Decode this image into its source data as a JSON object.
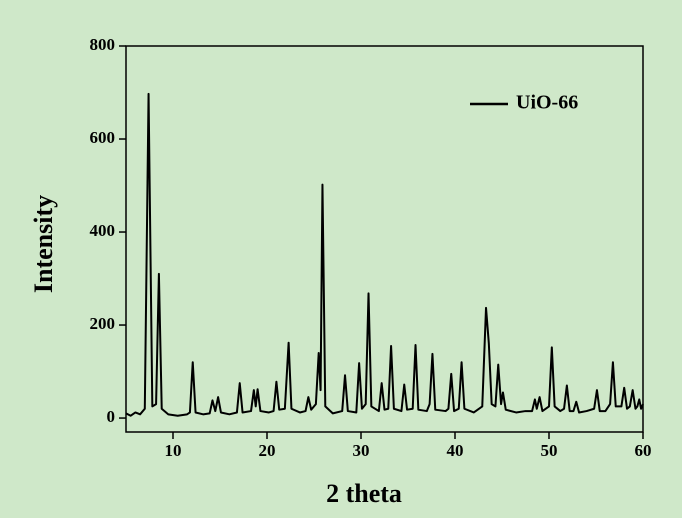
{
  "chart_data": {
    "type": "line",
    "x_label": "2 theta",
    "y_label": "Intensity",
    "xlim": [
      5,
      60
    ],
    "xticks": [
      10,
      20,
      30,
      40,
      50,
      60
    ],
    "ylim": [
      -30,
      800
    ],
    "yticks": [
      0,
      200,
      400,
      600,
      800
    ],
    "legend": "top-right",
    "x": [
      5,
      5.5,
      6,
      6.5,
      7.0,
      7.4,
      7.8,
      8.2,
      8.5,
      8.8,
      9.5,
      10.5,
      11.5,
      11.8,
      12.1,
      12.4,
      13.2,
      13.9,
      14.2,
      14.5,
      14.8,
      15.1,
      16.0,
      16.8,
      17.1,
      17.4,
      18.3,
      18.6,
      18.8,
      19.0,
      19.3,
      20.2,
      20.7,
      21.0,
      21.3,
      21.9,
      22.3,
      22.6,
      23.5,
      24.1,
      24.4,
      24.7,
      25.2,
      25.5,
      25.7,
      25.9,
      26.2,
      27.0,
      28.0,
      28.3,
      28.6,
      29.5,
      29.8,
      30.1,
      30.5,
      30.8,
      31.1,
      31.9,
      32.2,
      32.5,
      32.9,
      33.2,
      33.5,
      34.3,
      34.6,
      34.9,
      35.5,
      35.8,
      36.1,
      37.0,
      37.3,
      37.6,
      37.9,
      39.0,
      39.3,
      39.6,
      39.9,
      40.4,
      40.7,
      41.0,
      42.0,
      42.9,
      43.3,
      43.6,
      43.9,
      44.3,
      44.6,
      44.9,
      45.1,
      45.4,
      46.5,
      47.5,
      48.2,
      48.5,
      48.7,
      49.0,
      49.3,
      50.0,
      50.3,
      50.6,
      51.2,
      51.6,
      51.9,
      52.2,
      52.6,
      52.9,
      53.2,
      54.0,
      54.8,
      55.1,
      55.4,
      56.0,
      56.5,
      56.8,
      57.1,
      57.7,
      58.0,
      58.3,
      58.6,
      58.9,
      59.2,
      59.4,
      59.6,
      59.8,
      60
    ],
    "series": [
      {
        "name": "UiO-66",
        "color": "#000000",
        "values": [
          10,
          5,
          12,
          8,
          20,
          697,
          25,
          30,
          310,
          20,
          8,
          5,
          8,
          12,
          120,
          12,
          8,
          10,
          38,
          15,
          45,
          12,
          8,
          12,
          75,
          12,
          15,
          60,
          25,
          62,
          15,
          12,
          15,
          78,
          18,
          20,
          162,
          20,
          12,
          15,
          45,
          18,
          30,
          140,
          60,
          502,
          25,
          10,
          15,
          92,
          15,
          12,
          118,
          20,
          30,
          268,
          25,
          15,
          75,
          18,
          20,
          155,
          20,
          15,
          72,
          18,
          20,
          157,
          18,
          15,
          30,
          138,
          18,
          15,
          20,
          95,
          15,
          20,
          120,
          20,
          12,
          25,
          237,
          160,
          30,
          25,
          115,
          30,
          55,
          18,
          12,
          15,
          15,
          40,
          20,
          45,
          15,
          25,
          152,
          25,
          15,
          20,
          70,
          15,
          15,
          35,
          12,
          15,
          20,
          60,
          15,
          15,
          30,
          120,
          25,
          25,
          65,
          20,
          25,
          60,
          20,
          25,
          40,
          20,
          30
        ]
      }
    ]
  }
}
